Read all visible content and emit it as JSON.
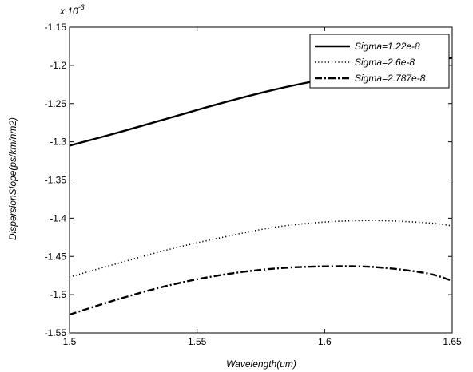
{
  "chart_data": {
    "type": "line",
    "title": "",
    "xlabel": "Wavelength(um)",
    "ylabel": "DispersionSlope(ps/km/nm2)",
    "y_multiplier": "x 10",
    "y_multiplier_exponent": "-3",
    "xlim": [
      1.5,
      1.65
    ],
    "ylim": [
      -1.55,
      -1.15
    ],
    "xticks": [
      "1.5",
      "1.55",
      "1.6",
      "1.65"
    ],
    "yticks": [
      "-1.15",
      "-1.2",
      "-1.25",
      "-1.3",
      "-1.35",
      "-1.4",
      "-1.45",
      "-1.5",
      "-1.55"
    ],
    "grid": false,
    "legend_position": "top-right",
    "x": [
      1.5,
      1.52,
      1.54,
      1.56,
      1.58,
      1.6,
      1.62,
      1.64,
      1.65
    ],
    "series": [
      {
        "name": "Sigma=1.22e-8",
        "style": "solid",
        "values": [
          -1.305,
          -1.287,
          -1.268,
          -1.249,
          -1.232,
          -1.218,
          -1.206,
          -1.196,
          -1.19
        ]
      },
      {
        "name": "Sigma=2.6e-8",
        "style": "dotted",
        "values": [
          -1.477,
          -1.458,
          -1.44,
          -1.425,
          -1.412,
          -1.405,
          -1.403,
          -1.406,
          -1.41
        ]
      },
      {
        "name": "Sigma=2.787e-8",
        "style": "dashdot",
        "values": [
          -1.526,
          -1.505,
          -1.487,
          -1.474,
          -1.466,
          -1.463,
          -1.464,
          -1.472,
          -1.482
        ]
      }
    ]
  }
}
